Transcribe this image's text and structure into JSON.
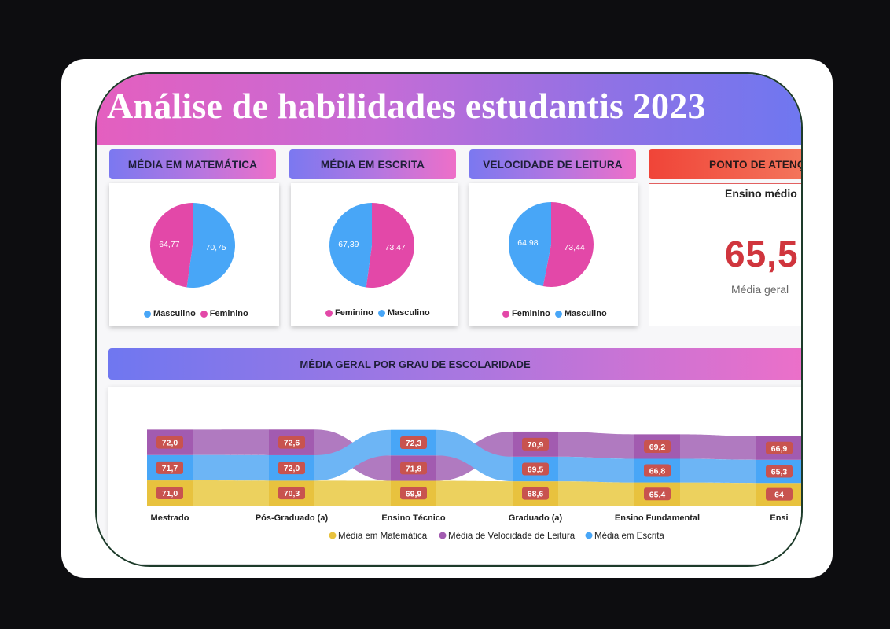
{
  "title": "Análise de habilidades estudantis 2023",
  "colors": {
    "feminino": "#e348a8",
    "masculino": "#48a6f7",
    "matematica": "#e8c23e",
    "leitura": "#a25bb0",
    "escrita": "#48a6f7",
    "badge": "#c8534f",
    "alert": "#d0353d"
  },
  "kpis": [
    {
      "title": "MÉDIA EM MATEMÁTICA",
      "legend": [
        {
          "name": "Masculino",
          "color": "#48a6f7"
        },
        {
          "name": "Feminino",
          "color": "#e348a8"
        }
      ]
    },
    {
      "title": "MÉDIA EM ESCRITA",
      "legend": [
        {
          "name": "Feminino",
          "color": "#e348a8"
        },
        {
          "name": "Masculino",
          "color": "#48a6f7"
        }
      ]
    },
    {
      "title": "VELOCIDADE DE LEITURA",
      "legend": [
        {
          "name": "Feminino",
          "color": "#e348a8"
        },
        {
          "name": "Masculino",
          "color": "#48a6f7"
        }
      ]
    }
  ],
  "alert": {
    "title": "PONTO DE ATENÇÃO",
    "subtitle": "Ensino médio",
    "value": "65,5",
    "caption": "Média geral"
  },
  "section_title": "MÉDIA GERAL POR GRAU DE ESCOLARIDADE",
  "chart_data": [
    {
      "type": "pie",
      "title": "MÉDIA EM MATEMÁTICA",
      "slices": [
        {
          "name": "Masculino",
          "value": 70.75,
          "label": "70,75"
        },
        {
          "name": "Feminino",
          "value": 64.77,
          "label": "64,77"
        }
      ]
    },
    {
      "type": "pie",
      "title": "MÉDIA EM ESCRITA",
      "slices": [
        {
          "name": "Feminino",
          "value": 73.47,
          "label": "73,47"
        },
        {
          "name": "Masculino",
          "value": 67.39,
          "label": "67,39"
        }
      ]
    },
    {
      "type": "pie",
      "title": "VELOCIDADE DE LEITURA",
      "slices": [
        {
          "name": "Feminino",
          "value": 73.44,
          "label": "73,44"
        },
        {
          "name": "Masculino",
          "value": 64.98,
          "label": "64,98"
        }
      ]
    },
    {
      "type": "ribbon",
      "title": "MÉDIA GERAL POR GRAU DE ESCOLARIDADE",
      "categories": [
        "Mestrado",
        "Pós-Graduado (a)",
        "Ensino Técnico",
        "Graduado (a)",
        "Ensino Fundamental",
        "Ensi"
      ],
      "series": [
        {
          "name": "Média em Matemática",
          "values": [
            71.0,
            70.3,
            69.9,
            68.6,
            65.4,
            64
          ],
          "labels": [
            "71,0",
            "70,3",
            "69,9",
            "68,6",
            "65,4",
            "64"
          ]
        },
        {
          "name": "Média de Velocidade de Leitura",
          "values": [
            72.0,
            72.6,
            71.8,
            70.9,
            69.2,
            66.9
          ],
          "labels": [
            "72,0",
            "72,6",
            "71,8",
            "70,9",
            "69,2",
            "66,9"
          ]
        },
        {
          "name": "Média em Escrita",
          "values": [
            71.7,
            72.0,
            72.3,
            69.5,
            66.8,
            65.3
          ],
          "labels": [
            "71,7",
            "72,0",
            "72,3",
            "69,5",
            "66,8",
            "65,3"
          ]
        }
      ]
    }
  ]
}
